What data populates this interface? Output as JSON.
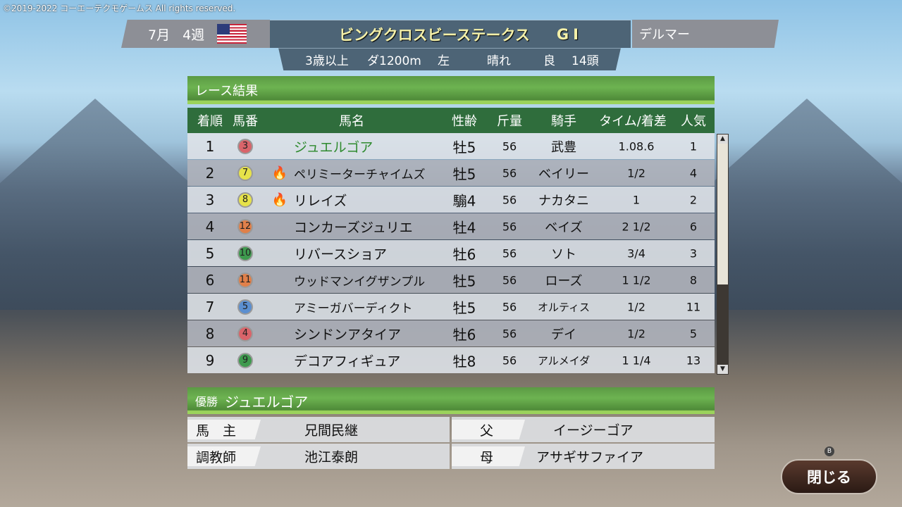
{
  "copyright": "©2019-2022 コーエーテクモゲームス All rights reserved.",
  "header": {
    "month": "7月",
    "week": "4週",
    "flag": "us-flag",
    "race_name": "ビングクロスビーステークス",
    "grade": "GⅠ",
    "venue": "デルマー",
    "conditions": {
      "age": "3歳以上",
      "surface_distance": "ダ1200m",
      "direction": "左",
      "weather": "晴れ",
      "going": "良",
      "runners": "14頭"
    }
  },
  "results": {
    "title": "レース結果",
    "columns": [
      "着順",
      "馬番",
      "馬名",
      "性齢",
      "斤量",
      "騎手",
      "タイム/着差",
      "人気"
    ],
    "rows": [
      {
        "pos": "1",
        "num": "3",
        "color": "#d9646a",
        "fire": false,
        "name": "ジュエルゴア",
        "sexage": "牡5",
        "weight": "56",
        "jockey": "武豊",
        "margin": "1.08.6",
        "pop": "1",
        "winner": true
      },
      {
        "pos": "2",
        "num": "7",
        "color": "#e6e24a",
        "fire": true,
        "name": "ペリミーターチャイムズ",
        "sexage": "牡5",
        "weight": "56",
        "jockey": "ベイリー",
        "margin": "1/2",
        "pop": "4"
      },
      {
        "pos": "3",
        "num": "8",
        "color": "#e6e24a",
        "fire": true,
        "name": "リレイズ",
        "sexage": "騸4",
        "weight": "56",
        "jockey": "ナカタニ",
        "margin": "1",
        "pop": "2"
      },
      {
        "pos": "4",
        "num": "12",
        "color": "#e0804a",
        "fire": false,
        "name": "コンカーズジュリエ",
        "sexage": "牡4",
        "weight": "56",
        "jockey": "ベイズ",
        "margin": "2 1/2",
        "pop": "6"
      },
      {
        "pos": "5",
        "num": "10",
        "color": "#3e9a4e",
        "fire": false,
        "name": "リバースショア",
        "sexage": "牡6",
        "weight": "56",
        "jockey": "ソト",
        "margin": "3/4",
        "pop": "3"
      },
      {
        "pos": "6",
        "num": "11",
        "color": "#e0804a",
        "fire": false,
        "name": "ウッドマンイグザンプル",
        "sexage": "牡5",
        "weight": "56",
        "jockey": "ローズ",
        "margin": "1 1/2",
        "pop": "8"
      },
      {
        "pos": "7",
        "num": "5",
        "color": "#5b8fd0",
        "fire": false,
        "name": "アミーガバーディクト",
        "sexage": "牡5",
        "weight": "56",
        "jockey": "オルティス",
        "margin": "1/2",
        "pop": "11"
      },
      {
        "pos": "8",
        "num": "4",
        "color": "#d9646a",
        "fire": false,
        "name": "シンドンアタイア",
        "sexage": "牡6",
        "weight": "56",
        "jockey": "デイ",
        "margin": "1/2",
        "pop": "5"
      },
      {
        "pos": "9",
        "num": "9",
        "color": "#3e9a4e",
        "fire": false,
        "name": "デコアフィギュア",
        "sexage": "牡8",
        "weight": "56",
        "jockey": "アルメイダ",
        "margin": "1 1/4",
        "pop": "13"
      }
    ]
  },
  "winner": {
    "label": "優勝",
    "name": "ジュエルゴア",
    "owner_label": "馬　主",
    "owner": "兄間民継",
    "trainer_label": "調教師",
    "trainer": "池江泰朗",
    "sire_label": "父",
    "sire": "イージーゴア",
    "dam_label": "母",
    "dam": "アサギサファイア"
  },
  "close": {
    "label": "閉じる",
    "hint": "B"
  },
  "colors": {
    "header_green": "#2f6d3c",
    "winner_text": "#2e8a2e",
    "title_yellow": "#f4f0a8"
  }
}
